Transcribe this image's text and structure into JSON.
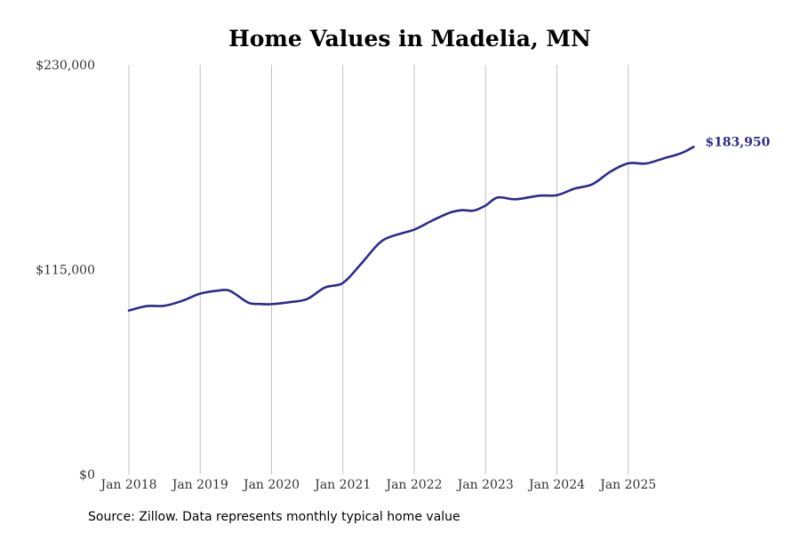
{
  "chart_data": {
    "type": "line",
    "title": "Home Values in Madelia, MN",
    "xlabel": "",
    "ylabel": "",
    "ylim": [
      0,
      230000
    ],
    "y_ticks": [
      {
        "value": 0,
        "label": "$0"
      },
      {
        "value": 115000,
        "label": "$115,000"
      },
      {
        "value": 230000,
        "label": "$230,000"
      }
    ],
    "x_ticks": [
      {
        "value": 2018.0,
        "label": "Jan 2018"
      },
      {
        "value": 2019.0,
        "label": "Jan 2019"
      },
      {
        "value": 2020.0,
        "label": "Jan 2020"
      },
      {
        "value": 2021.0,
        "label": "Jan 2021"
      },
      {
        "value": 2022.0,
        "label": "Jan 2022"
      },
      {
        "value": 2023.0,
        "label": "Jan 2023"
      },
      {
        "value": 2024.0,
        "label": "Jan 2024"
      },
      {
        "value": 2025.0,
        "label": "Jan 2025"
      }
    ],
    "xlim": [
      2018.0,
      2025.917
    ],
    "grid": "vertical",
    "series": [
      {
        "name": "Typical home value",
        "color": "#2e2a8c",
        "end_label": "$183,950",
        "x": [
          2018.0,
          2018.25,
          2018.5,
          2018.75,
          2019.0,
          2019.25,
          2019.42,
          2019.67,
          2019.83,
          2020.0,
          2020.25,
          2020.5,
          2020.75,
          2021.0,
          2021.25,
          2021.5,
          2021.67,
          2022.0,
          2022.25,
          2022.5,
          2022.67,
          2022.83,
          2023.0,
          2023.17,
          2023.42,
          2023.75,
          2024.0,
          2024.25,
          2024.5,
          2024.75,
          2025.0,
          2025.25,
          2025.5,
          2025.75,
          2025.917
        ],
        "y": [
          92000,
          94500,
          94700,
          97500,
          101500,
          103200,
          103000,
          96500,
          95700,
          95600,
          96700,
          98500,
          105000,
          107500,
          118000,
          129500,
          133500,
          137500,
          142500,
          147000,
          148400,
          148100,
          151000,
          155500,
          154500,
          156500,
          156800,
          160500,
          163000,
          170000,
          174700,
          174600,
          177500,
          180500,
          183950
        ]
      }
    ]
  },
  "source_note": "Source: Zillow. Data represents monthly typical home value"
}
